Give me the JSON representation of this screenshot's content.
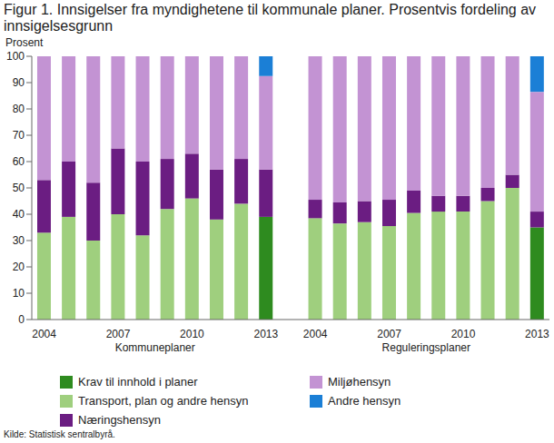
{
  "chart_data": {
    "type": "bar",
    "title": "Figur 1. Innsigelser fra myndighetene til kommunale planer. Prosentvis fordeling av innsigelsesgrunn",
    "y_label": "Prosent",
    "source": "Kilde: Statistisk sentralbyrå.",
    "group_labels": [
      "Kommuneplaner",
      "Reguleringsplaner"
    ],
    "stacked": true,
    "grid": false,
    "legend": "bottom",
    "categories": [
      "2004",
      null,
      null,
      "2007",
      null,
      null,
      "2010",
      null,
      null,
      "2013",
      null,
      "2004",
      null,
      null,
      "2007",
      null,
      null,
      "2010",
      null,
      null,
      "2013"
    ],
    "ylim": [
      0,
      100
    ],
    "yticks": [
      0,
      10,
      20,
      30,
      40,
      50,
      60,
      70,
      80,
      90,
      100
    ],
    "series": [
      {
        "name": "Krav til innhold i planer",
        "color": "#2e8b1f",
        "values": [
          null,
          null,
          null,
          null,
          null,
          null,
          null,
          null,
          null,
          39,
          null,
          null,
          null,
          null,
          null,
          null,
          null,
          null,
          null,
          null,
          35
        ]
      },
      {
        "name": "Transport, plan og andre hensyn",
        "color": "#9fcf7e",
        "values": [
          33,
          39,
          30,
          40,
          32,
          42,
          46,
          38,
          44,
          null,
          null,
          38.5,
          36.5,
          37,
          35.5,
          40.5,
          41,
          41,
          45,
          50,
          null
        ]
      },
      {
        "name": "Næringshensyn",
        "color": "#6b1d82",
        "values": [
          20,
          21,
          22,
          25,
          28,
          19,
          17,
          19,
          17,
          18,
          null,
          7,
          8,
          8,
          10,
          8.5,
          6,
          6,
          5,
          5,
          6
        ]
      },
      {
        "name": "Miljøhensyn",
        "color": "#c393d3",
        "values": [
          47,
          40,
          48,
          35,
          40,
          39,
          37,
          43,
          39,
          35.5,
          null,
          54.5,
          55.5,
          55,
          54.5,
          51,
          53,
          53,
          50,
          45,
          45.5
        ]
      },
      {
        "name": "Andre hensyn",
        "color": "#1b7fd6",
        "values": [
          null,
          null,
          null,
          null,
          null,
          null,
          null,
          null,
          null,
          7.5,
          null,
          null,
          null,
          null,
          null,
          null,
          null,
          null,
          null,
          null,
          13.5
        ]
      }
    ]
  }
}
